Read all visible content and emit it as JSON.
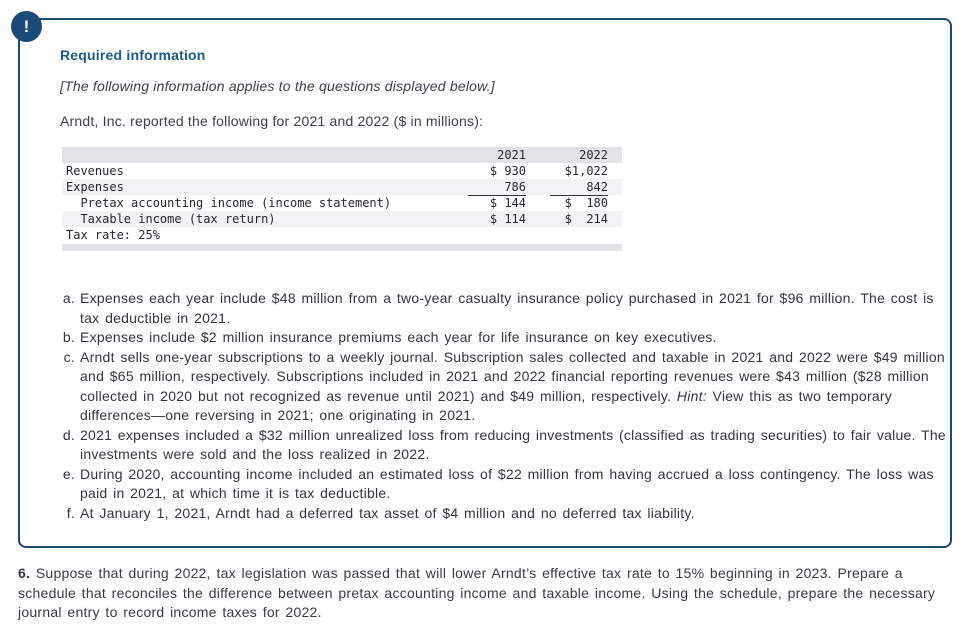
{
  "callout": {
    "icon": "!",
    "title": "Required information",
    "subtitle": "[The following information applies to the questions displayed below.]",
    "intro": "Arndt, Inc. reported the following for 2021 and 2022 ($ in millions):"
  },
  "table": {
    "col_headers": [
      "2021",
      "2022"
    ],
    "rows": [
      {
        "label": "Revenues",
        "y2021": "$ 930",
        "y2022": "$1,022"
      },
      {
        "label": "Expenses",
        "y2021": "786",
        "y2022": "842"
      },
      {
        "label": "  Pretax accounting income (income statement)",
        "y2021": "$ 144",
        "y2022": "$  180"
      },
      {
        "label": "  Taxable income (tax return)",
        "y2021": "$ 114",
        "y2022": "$  214"
      },
      {
        "label": "Tax rate: 25%",
        "y2021": "",
        "y2022": ""
      }
    ]
  },
  "notes": {
    "items": [
      {
        "marker": "a.",
        "text": "Expenses each year include $48 million from a two-year casualty insurance policy purchased in 2021 for $96 million. The cost is tax deductible in 2021."
      },
      {
        "marker": "b.",
        "text": "Expenses include $2 million insurance premiums each year for life insurance on key executives."
      },
      {
        "marker": "c.",
        "text": "Arndt sells one-year subscriptions to a weekly journal. Subscription sales collected and taxable in 2021 and 2022 were $49 million and $65 million, respectively. Subscriptions included in 2021 and 2022 financial reporting revenues were $43 million ($28 million collected in 2020 but not recognized as revenue until 2021) and $49 million, respectively. ",
        "hint": "Hint:",
        "text2": " View this as two temporary differences—one reversing in 2021; one originating in 2021."
      },
      {
        "marker": "d.",
        "text": "2021 expenses included a $32 million unrealized loss from reducing investments (classified as trading securities) to fair value. The investments were sold and the loss realized in 2022."
      },
      {
        "marker": "e.",
        "text": "During 2020, accounting income included an estimated loss of $22 million from having accrued a loss contingency. The loss was paid in 2021, at which time it is tax deductible."
      },
      {
        "marker": "f.",
        "text": "At January 1, 2021, Arndt had a deferred tax asset of $4 million and no deferred tax liability."
      }
    ]
  },
  "question": {
    "number": "6.",
    "text": " Suppose that during 2022, tax legislation was passed that will lower Arndt’s effective tax rate to 15% beginning in 2023. Prepare a schedule that reconciles the difference between pretax accounting income and taxable income. Using the schedule, prepare the necessary journal entry to record income taxes for 2022."
  }
}
